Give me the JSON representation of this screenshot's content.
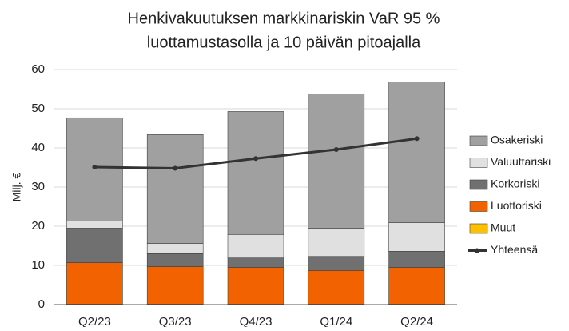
{
  "chart_data": {
    "type": "bar",
    "stacked": true,
    "title": [
      "Henkivakuutuksen markkinariskin VaR 95 %",
      "luottamustasolla ja 10 päivän pitoajalla"
    ],
    "y_label": "Milj. €",
    "categories": [
      "Q2/23",
      "Q3/23",
      "Q4/23",
      "Q1/24",
      "Q2/24"
    ],
    "series": [
      {
        "name": "Osakeriski",
        "color": "#a0a0a0",
        "values": [
          26.4,
          27.8,
          31.4,
          34.3,
          35.9
        ]
      },
      {
        "name": "Valuuttariski",
        "color": "#e0e0e0",
        "values": [
          1.8,
          2.6,
          6.0,
          7.2,
          7.3
        ]
      },
      {
        "name": "Korkoriski",
        "color": "#707070",
        "values": [
          8.8,
          3.3,
          2.4,
          3.6,
          4.1
        ]
      },
      {
        "name": "Luottoriski",
        "color": "#f26300",
        "values": [
          10.6,
          9.6,
          9.4,
          8.6,
          9.4
        ]
      },
      {
        "name": "Muut",
        "color": "#ffc000",
        "values": [
          0.1,
          0.1,
          0.1,
          0.1,
          0.1
        ]
      },
      {
        "name": "Yhteensä",
        "color": "#333333",
        "type": "line",
        "values": [
          35.1,
          34.8,
          37.3,
          39.6,
          42.4
        ]
      }
    ],
    "ylim": [
      0,
      60
    ],
    "yticks": [
      0,
      10,
      20,
      30,
      40,
      50,
      60
    ],
    "grid": true,
    "legend": "right"
  }
}
